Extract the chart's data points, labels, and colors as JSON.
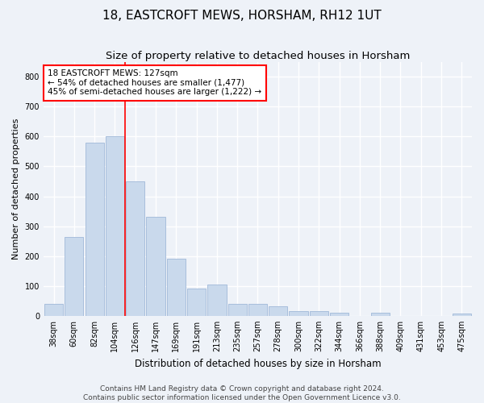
{
  "title": "18, EASTCROFT MEWS, HORSHAM, RH12 1UT",
  "subtitle": "Size of property relative to detached houses in Horsham",
  "xlabel": "Distribution of detached houses by size in Horsham",
  "ylabel": "Number of detached properties",
  "categories": [
    "38sqm",
    "60sqm",
    "82sqm",
    "104sqm",
    "126sqm",
    "147sqm",
    "169sqm",
    "191sqm",
    "213sqm",
    "235sqm",
    "257sqm",
    "278sqm",
    "300sqm",
    "322sqm",
    "344sqm",
    "366sqm",
    "388sqm",
    "409sqm",
    "431sqm",
    "453sqm",
    "475sqm"
  ],
  "values": [
    40,
    265,
    580,
    600,
    450,
    330,
    190,
    90,
    105,
    40,
    40,
    32,
    15,
    15,
    10,
    0,
    10,
    0,
    0,
    0,
    8
  ],
  "bar_color": "#c9d9ec",
  "bar_edge_color": "#a0b8d8",
  "highlight_line_index": 4,
  "highlight_line_color": "red",
  "annotation_text": "18 EASTCROFT MEWS: 127sqm\n← 54% of detached houses are smaller (1,477)\n45% of semi-detached houses are larger (1,222) →",
  "annotation_box_color": "white",
  "annotation_box_edge": "red",
  "ylim": [
    0,
    850
  ],
  "yticks": [
    0,
    100,
    200,
    300,
    400,
    500,
    600,
    700,
    800
  ],
  "footer_line1": "Contains HM Land Registry data © Crown copyright and database right 2024.",
  "footer_line2": "Contains public sector information licensed under the Open Government Licence v3.0.",
  "background_color": "#eef2f8",
  "grid_color": "white",
  "title_fontsize": 11,
  "subtitle_fontsize": 9.5,
  "ylabel_fontsize": 8,
  "xlabel_fontsize": 8.5,
  "tick_fontsize": 7,
  "annotation_fontsize": 7.5,
  "footer_fontsize": 6.5
}
